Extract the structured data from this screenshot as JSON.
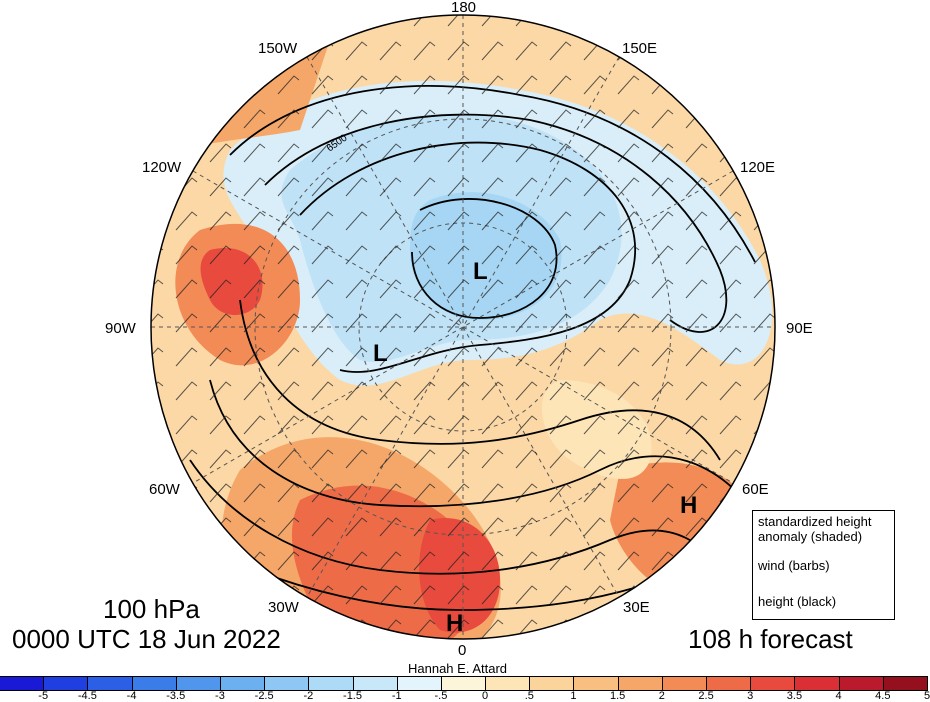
{
  "map": {
    "title_level": "100 hPa",
    "title_time": "0000 UTC 18 Jun 2022",
    "forecast": "108 h forecast",
    "credit": "Hannah E. Attard",
    "longitude_labels": [
      "180",
      "150E",
      "120E",
      "90E",
      "60E",
      "30E",
      "0",
      "30W",
      "60W",
      "90W",
      "120W",
      "150W"
    ],
    "contour_label": "6500",
    "pressure_centers": [
      "L",
      "L",
      "H",
      "H"
    ],
    "legend": {
      "line1": "standardized height",
      "line2": "anomaly (shaded)",
      "line3": "wind (barbs)",
      "line4": "height (black)"
    }
  },
  "colorbar": {
    "ticks": [
      "-5",
      "-4.5",
      "-4",
      "-3.5",
      "-3",
      "-2.5",
      "-2",
      "-1.5",
      "-1",
      "-.5",
      "0",
      ".5",
      "1",
      "1.5",
      "2",
      "2.5",
      "3",
      "3.5",
      "4",
      "4.5",
      "5"
    ],
    "colors": [
      "#1a1ad6",
      "#1f3fe0",
      "#2a5fe6",
      "#3a7de9",
      "#4f96ec",
      "#6db0f0",
      "#8ec6f4",
      "#addaf7",
      "#c8e8fa",
      "#e3f4fc",
      "#fdf5da",
      "#fde5b8",
      "#fbd49b",
      "#f8bf80",
      "#f5a769",
      "#f28b56",
      "#ee6b48",
      "#e84a3d",
      "#d92f35",
      "#bb1a2c",
      "#95101f"
    ]
  }
}
